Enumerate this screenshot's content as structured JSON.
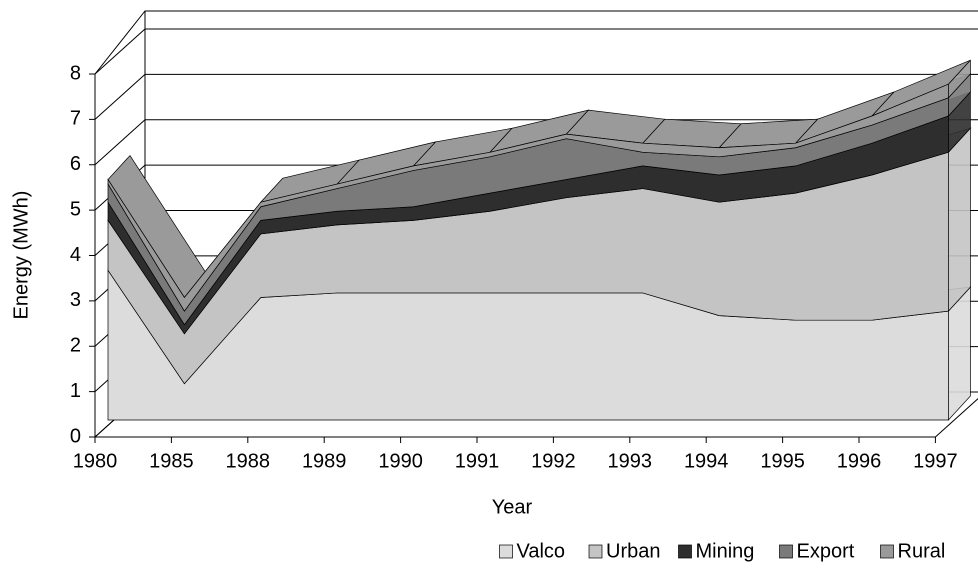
{
  "chart_data": {
    "type": "area3d",
    "y_label": "Energy (MWh)",
    "x_label": "Year",
    "categories": [
      "1980",
      "1985",
      "1988",
      "1989",
      "1990",
      "1991",
      "1992",
      "1993",
      "1994",
      "1995",
      "1996",
      "1997"
    ],
    "series": [
      {
        "name": "Valco",
        "color": "#dcdcdc",
        "values": [
          3.3,
          0.8,
          2.7,
          2.8,
          2.8,
          2.8,
          2.8,
          2.8,
          2.3,
          2.2,
          2.2,
          2.4
        ]
      },
      {
        "name": "Urban",
        "color": "#c4c4c4",
        "values": [
          1.1,
          1.1,
          1.4,
          1.5,
          1.6,
          1.8,
          2.1,
          2.3,
          2.5,
          2.8,
          3.2,
          3.5
        ]
      },
      {
        "name": "Mining",
        "color": "#2e2e2e",
        "values": [
          0.4,
          0.2,
          0.3,
          0.3,
          0.3,
          0.4,
          0.4,
          0.5,
          0.6,
          0.6,
          0.7,
          0.8
        ]
      },
      {
        "name": "Export",
        "color": "#7a7a7a",
        "values": [
          0.4,
          0.3,
          0.3,
          0.5,
          0.8,
          0.8,
          0.9,
          0.3,
          0.4,
          0.4,
          0.4,
          0.4
        ]
      },
      {
        "name": "Rural",
        "color": "#9a9a9a",
        "values": [
          0.1,
          0.3,
          0.1,
          0.1,
          0.1,
          0.1,
          0.1,
          0.2,
          0.2,
          0.1,
          0.2,
          0.3
        ]
      }
    ],
    "ylim": [
      0,
      8
    ],
    "yticks": [
      0,
      1,
      2,
      3,
      4,
      5,
      6,
      7,
      8
    ],
    "grid": true,
    "legend": "bottom-right"
  }
}
